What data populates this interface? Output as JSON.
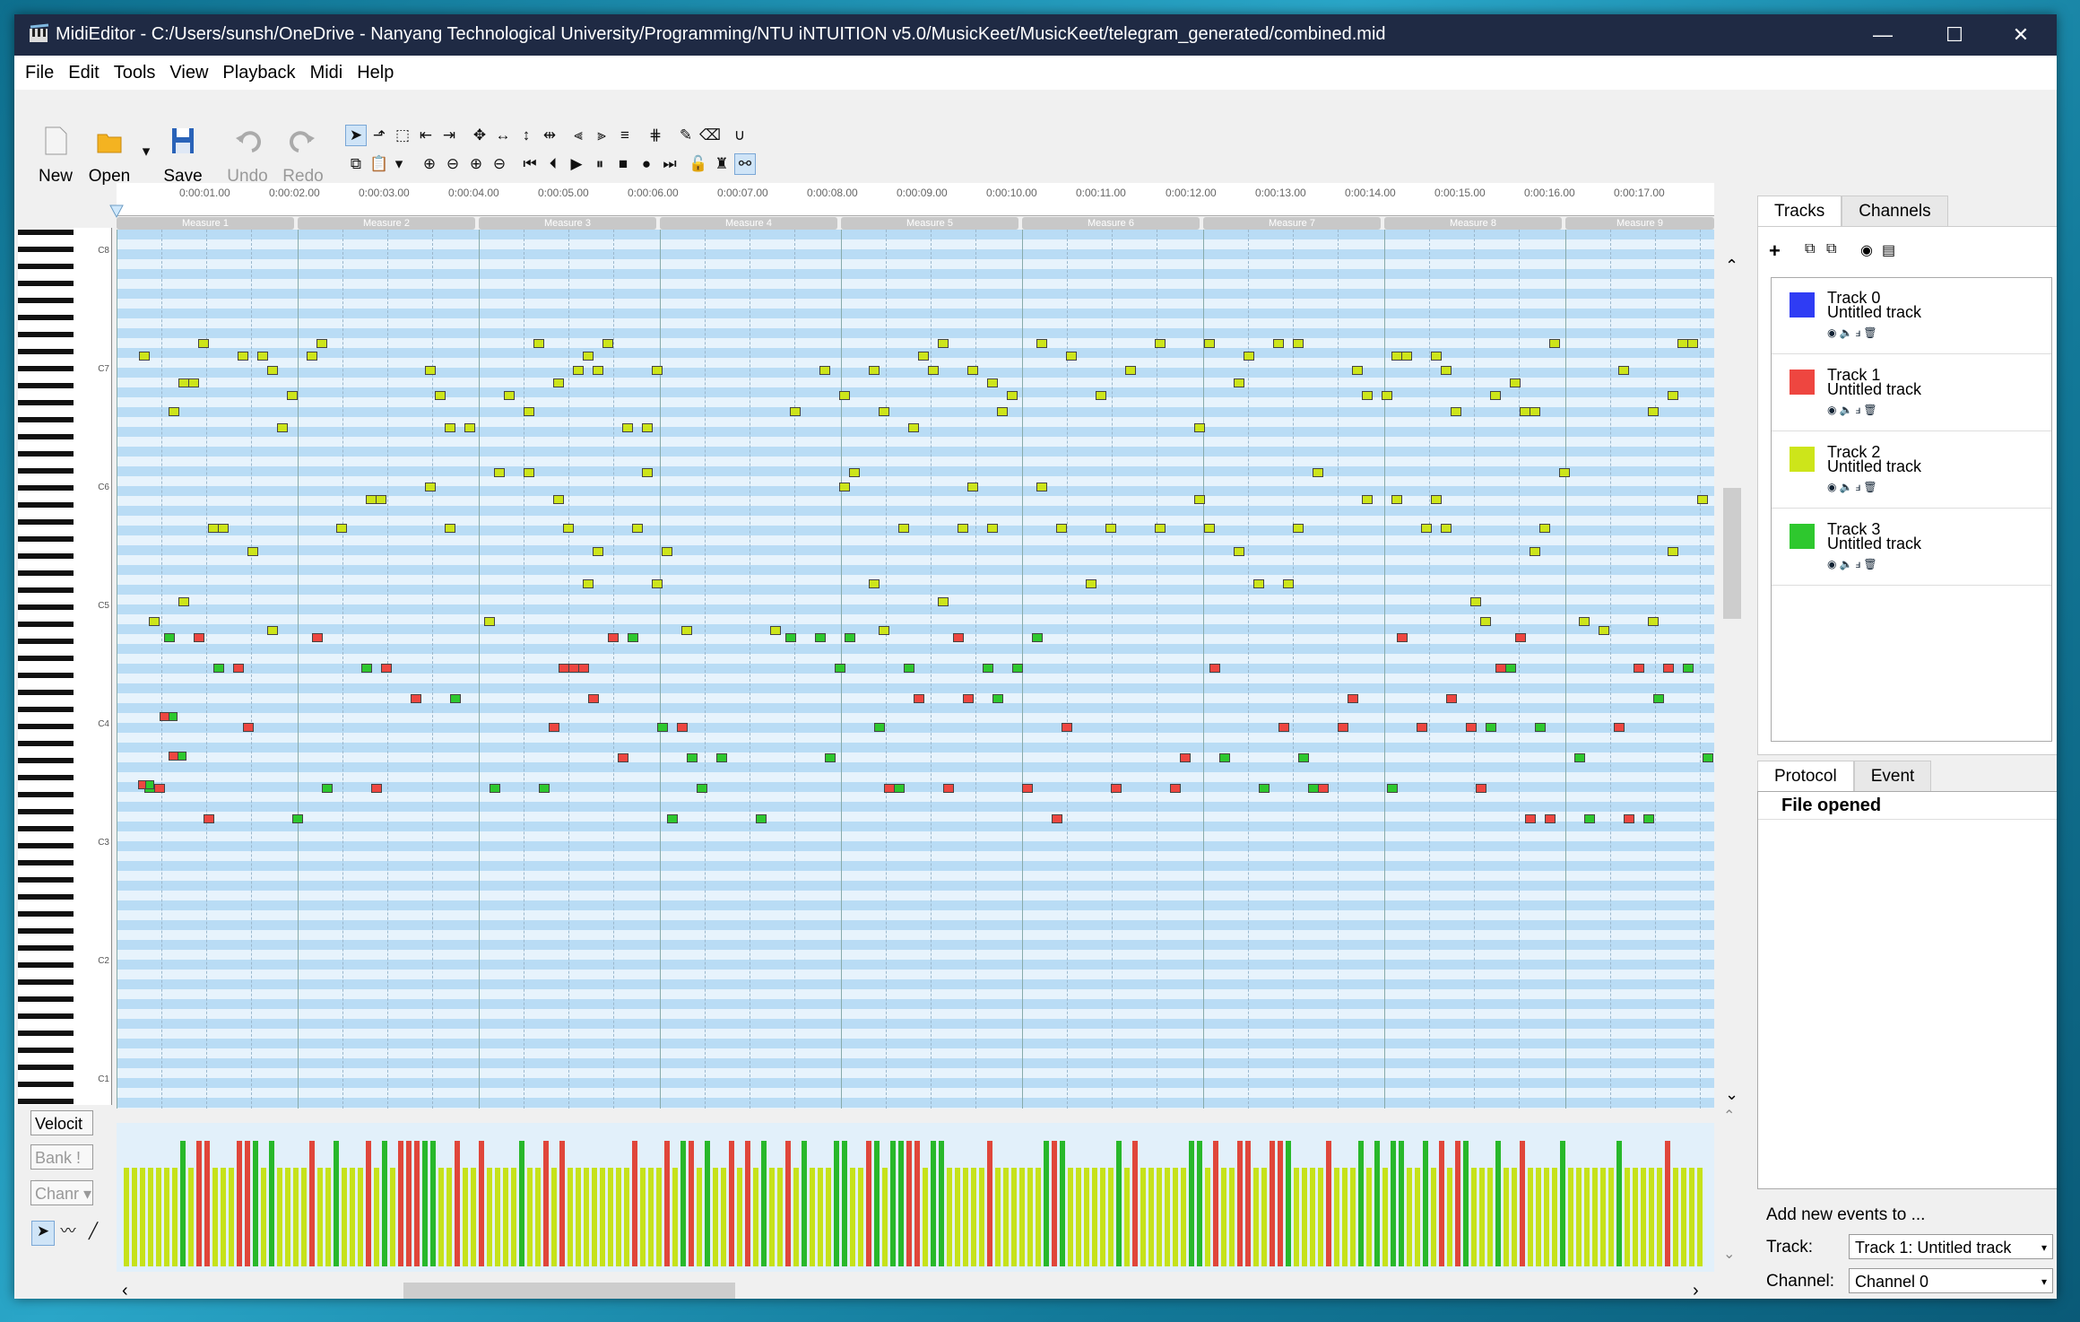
{
  "window": {
    "title": "MidiEditor - C:/Users/sunsh/OneDrive - Nanyang Technological University/Programming/NTU iNTUITION v5.0/MusicKeet/MusicKeet/telegram_generated/combined.mid",
    "minimize": "—",
    "maximize": "☐",
    "close": "✕"
  },
  "menu": [
    "File",
    "Edit",
    "Tools",
    "View",
    "Playback",
    "Midi",
    "Help"
  ],
  "toolbar": {
    "new": "New",
    "open": "Open",
    "save": "Save",
    "undo": "Undo",
    "redo": "Redo"
  },
  "ruler": {
    "times": [
      "0:00:01.00",
      "0:00:02.00",
      "0:00:03.00",
      "0:00:04.00",
      "0:00:05.00",
      "0:00:06.00",
      "0:00:07.00",
      "0:00:08.00",
      "0:00:09.00",
      "0:00:10.00",
      "0:00:11.00",
      "0:00:12.00",
      "0:00:13.00",
      "0:00:14.00",
      "0:00:15.00",
      "0:00:16.00",
      "0:00:17.00"
    ],
    "measures": [
      "Measure 1",
      "Measure 2",
      "Measure 3",
      "Measure 4",
      "Measure 5",
      "Measure 6",
      "Measure 7",
      "Measure 8",
      "Measure 9"
    ]
  },
  "piano_labels": [
    "C8",
    "C7",
    "C6",
    "C5",
    "C4",
    "C3",
    "C2",
    "C1"
  ],
  "misc_controls": {
    "velocity": "Velocit",
    "bank": "Bank !",
    "channel": "Chanr"
  },
  "tracks_panel": {
    "tabs": [
      "Tracks",
      "Channels"
    ],
    "tracks": [
      {
        "name": "Track 0",
        "subtitle": "Untitled track",
        "color": "#2f3cf4"
      },
      {
        "name": "Track 1",
        "subtitle": "Untitled track",
        "color": "#ee4640"
      },
      {
        "name": "Track 2",
        "subtitle": "Untitled track",
        "color": "#cde51a"
      },
      {
        "name": "Track 3",
        "subtitle": "Untitled track",
        "color": "#2ec82e"
      }
    ]
  },
  "protocol_panel": {
    "tabs": [
      "Protocol",
      "Event"
    ],
    "entries": [
      "File opened"
    ]
  },
  "add_events": {
    "heading": "Add new events to ...",
    "track_label": "Track:",
    "track_value": "Track 1: Untitled track",
    "channel_label": "Channel:",
    "channel_value": "Channel 0"
  },
  "colors": {
    "track2_note": "#cde51a",
    "track1_note": "#ee4640",
    "track3_note": "#2ec82e",
    "title_bg": "#1f2a44"
  }
}
